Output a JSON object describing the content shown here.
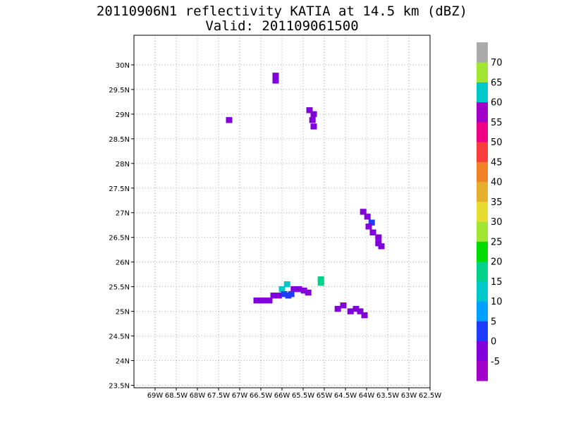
{
  "chart_data": {
    "type": "heatmap",
    "title": "20110906N1 reflectivity KATIA at 14.5 km (dBZ)",
    "subtitle": "Valid: 201109061500",
    "xlabel": "",
    "ylabel": "",
    "xlim": [
      -69.5,
      -62.5
    ],
    "ylim": [
      23.45,
      30.6
    ],
    "x_ticks": [
      {
        "value": -69,
        "label": "69W"
      },
      {
        "value": -68.5,
        "label": "68.5W"
      },
      {
        "value": -68,
        "label": "68W"
      },
      {
        "value": -67.5,
        "label": "67.5W"
      },
      {
        "value": -67,
        "label": "67W"
      },
      {
        "value": -66.5,
        "label": "66.5W"
      },
      {
        "value": -66,
        "label": "66W"
      },
      {
        "value": -65.5,
        "label": "65.5W"
      },
      {
        "value": -65,
        "label": "65W"
      },
      {
        "value": -64.5,
        "label": "64.5W"
      },
      {
        "value": -64,
        "label": "64W"
      },
      {
        "value": -63.5,
        "label": "63.5W"
      },
      {
        "value": -63,
        "label": "63W"
      },
      {
        "value": -62.5,
        "label": "62.5W"
      }
    ],
    "y_ticks": [
      {
        "value": 23.5,
        "label": "23.5N"
      },
      {
        "value": 24,
        "label": "24N"
      },
      {
        "value": 24.5,
        "label": "24.5N"
      },
      {
        "value": 25,
        "label": "25N"
      },
      {
        "value": 25.5,
        "label": "25.5N"
      },
      {
        "value": 26,
        "label": "26N"
      },
      {
        "value": 26.5,
        "label": "26.5N"
      },
      {
        "value": 27,
        "label": "27N"
      },
      {
        "value": 27.5,
        "label": "27.5N"
      },
      {
        "value": 28,
        "label": "28N"
      },
      {
        "value": 28.5,
        "label": "28.5N"
      },
      {
        "value": 29,
        "label": "29N"
      },
      {
        "value": 29.5,
        "label": "29.5N"
      },
      {
        "value": 30,
        "label": "30N"
      }
    ],
    "grid": true,
    "colorbar": {
      "labels": [
        "-5",
        "0",
        "5",
        "10",
        "15",
        "20",
        "25",
        "30",
        "35",
        "40",
        "45",
        "50",
        "55",
        "60",
        "65",
        "70"
      ],
      "colors": [
        "#a000c8",
        "#8200dc",
        "#1e3cff",
        "#00a0ff",
        "#00c8c8",
        "#00d28c",
        "#00dc00",
        "#a0e632",
        "#e6dc32",
        "#e6af2d",
        "#f08228",
        "#fa3c3c",
        "#f00082",
        "#a000c8",
        "#00c8c8",
        "#a0e632",
        "#aaaaaa"
      ]
    },
    "cells": [
      {
        "lon": -66.15,
        "lat": 29.78,
        "value": -5
      },
      {
        "lon": -66.15,
        "lat": 29.68,
        "value": -5
      },
      {
        "lon": -67.25,
        "lat": 28.88,
        "value": -5
      },
      {
        "lon": -65.35,
        "lat": 29.08,
        "value": -5
      },
      {
        "lon": -65.25,
        "lat": 29.0,
        "value": -5
      },
      {
        "lon": -65.28,
        "lat": 28.88,
        "value": -5
      },
      {
        "lon": -65.25,
        "lat": 28.75,
        "value": -5
      },
      {
        "lon": -64.08,
        "lat": 27.02,
        "value": -5
      },
      {
        "lon": -63.98,
        "lat": 26.92,
        "value": -5
      },
      {
        "lon": -63.88,
        "lat": 26.8,
        "value": 0
      },
      {
        "lon": -63.95,
        "lat": 26.72,
        "value": -5
      },
      {
        "lon": -63.85,
        "lat": 26.6,
        "value": -5
      },
      {
        "lon": -63.72,
        "lat": 26.5,
        "value": -5
      },
      {
        "lon": -63.72,
        "lat": 26.38,
        "value": -5
      },
      {
        "lon": -63.65,
        "lat": 26.32,
        "value": -5
      },
      {
        "lon": -65.08,
        "lat": 25.65,
        "value": 15
      },
      {
        "lon": -65.08,
        "lat": 25.58,
        "value": 15
      },
      {
        "lon": -66.6,
        "lat": 25.22,
        "value": -5
      },
      {
        "lon": -66.45,
        "lat": 25.22,
        "value": -5
      },
      {
        "lon": -66.3,
        "lat": 25.22,
        "value": -5
      },
      {
        "lon": -66.2,
        "lat": 25.32,
        "value": -5
      },
      {
        "lon": -66.08,
        "lat": 25.32,
        "value": -5
      },
      {
        "lon": -66.0,
        "lat": 25.45,
        "value": 10
      },
      {
        "lon": -65.88,
        "lat": 25.55,
        "value": 10
      },
      {
        "lon": -65.85,
        "lat": 25.32,
        "value": 0
      },
      {
        "lon": -65.72,
        "lat": 25.45,
        "value": -5
      },
      {
        "lon": -65.6,
        "lat": 25.45,
        "value": -5
      },
      {
        "lon": -65.48,
        "lat": 25.42,
        "value": -5
      },
      {
        "lon": -65.38,
        "lat": 25.38,
        "value": -5
      },
      {
        "lon": -65.95,
        "lat": 25.35,
        "value": 0
      },
      {
        "lon": -65.78,
        "lat": 25.35,
        "value": 0
      },
      {
        "lon": -64.68,
        "lat": 25.05,
        "value": -5
      },
      {
        "lon": -64.55,
        "lat": 25.12,
        "value": -5
      },
      {
        "lon": -64.38,
        "lat": 25.0,
        "value": -5
      },
      {
        "lon": -64.25,
        "lat": 25.05,
        "value": -5
      },
      {
        "lon": -64.15,
        "lat": 25.0,
        "value": -5
      },
      {
        "lon": -64.05,
        "lat": 24.92,
        "value": -5
      }
    ]
  }
}
